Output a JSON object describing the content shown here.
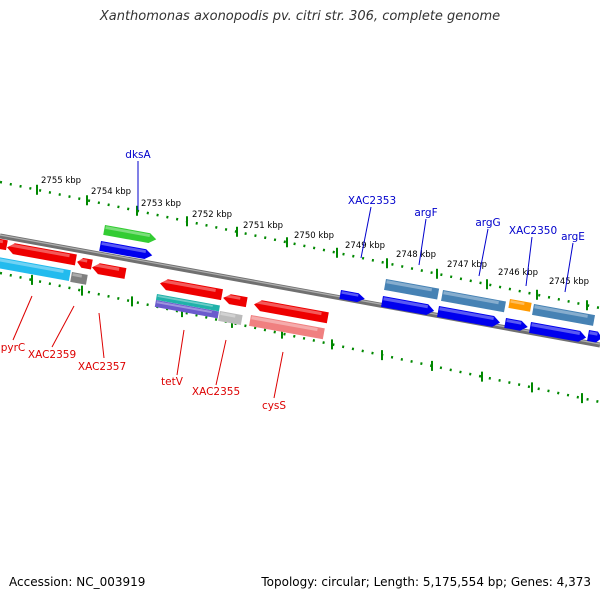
{
  "title": "Xanthomonas axonopodis pv. citri str. 306, complete genome",
  "footer": {
    "accession": "Accession: NC_003919",
    "topology": "Topology: circular; Length: 5,175,554 bp; Genes: 4,373"
  },
  "colors": {
    "upper_label": "#0000cc",
    "lower_label": "#dd0000",
    "tick": "#008800",
    "backbone": "#808080"
  },
  "ruler_ticks": [
    {
      "label": "2755 kbp"
    },
    {
      "label": "2754 kbp"
    },
    {
      "label": "2753 kbp"
    },
    {
      "label": "2752 kbp"
    },
    {
      "label": "2751 kbp"
    },
    {
      "label": "2750 kbp"
    },
    {
      "label": "2749 kbp"
    },
    {
      "label": "2748 kbp"
    },
    {
      "label": "2747 kbp"
    },
    {
      "label": "2746 kbp"
    },
    {
      "label": "2745 kbp"
    }
  ],
  "upper_gene_labels": [
    {
      "text": "dksA"
    },
    {
      "text": "XAC2353"
    },
    {
      "text": "argF"
    },
    {
      "text": "argG"
    },
    {
      "text": "XAC2350"
    },
    {
      "text": "argE"
    }
  ],
  "lower_gene_labels": [
    {
      "text": "pyrC"
    },
    {
      "text": "XAC2359"
    },
    {
      "text": "XAC2357"
    },
    {
      "text": "tetV"
    },
    {
      "text": "XAC2355"
    },
    {
      "text": "cysS"
    }
  ]
}
